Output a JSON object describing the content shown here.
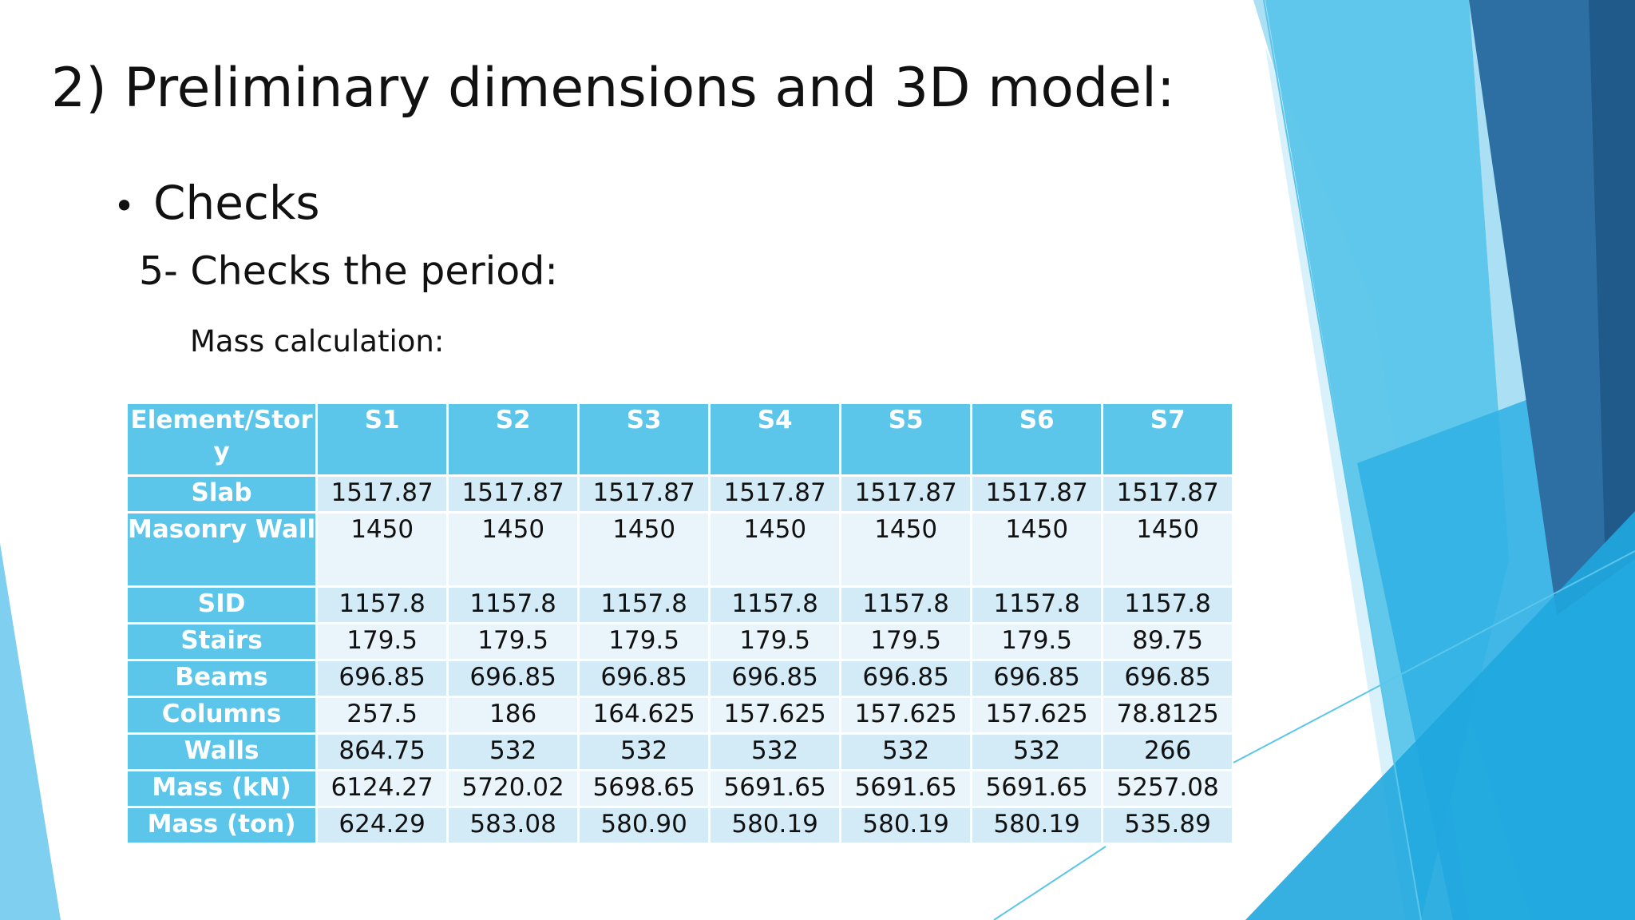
{
  "slide": {
    "title": "2) Preliminary dimensions and 3D model:",
    "bullet_symbol": "•",
    "bullet": "Checks",
    "subheading": "5- Checks the period:",
    "caption": "Mass calculation:"
  },
  "colors": {
    "table_header": "#5bc5ea",
    "row_even": "#d3eaf7",
    "row_odd": "#e9f4fb",
    "accent_dark": "#2e6fa3",
    "accent_light": "#9fdcf3"
  },
  "table": {
    "header_lines": [
      "Element/Stor",
      "y"
    ],
    "columns": [
      "S1",
      "S2",
      "S3",
      "S4",
      "S5",
      "S6",
      "S7"
    ],
    "rows": [
      {
        "label": "Slab",
        "values": [
          "1517.87",
          "1517.87",
          "1517.87",
          "1517.87",
          "1517.87",
          "1517.87",
          "1517.87"
        ]
      },
      {
        "label": "Masonry Wall",
        "values": [
          "1450",
          "1450",
          "1450",
          "1450",
          "1450",
          "1450",
          "1450"
        ]
      },
      {
        "label": "SID",
        "values": [
          "1157.8",
          "1157.8",
          "1157.8",
          "1157.8",
          "1157.8",
          "1157.8",
          "1157.8"
        ]
      },
      {
        "label": "Stairs",
        "values": [
          "179.5",
          "179.5",
          "179.5",
          "179.5",
          "179.5",
          "179.5",
          "89.75"
        ]
      },
      {
        "label": "Beams",
        "values": [
          "696.85",
          "696.85",
          "696.85",
          "696.85",
          "696.85",
          "696.85",
          "696.85"
        ]
      },
      {
        "label": "Columns",
        "values": [
          "257.5",
          "186",
          "164.625",
          "157.625",
          "157.625",
          "157.625",
          "78.8125"
        ]
      },
      {
        "label": "Walls",
        "values": [
          "864.75",
          "532",
          "532",
          "532",
          "532",
          "532",
          "266"
        ]
      },
      {
        "label": "Mass (kN)",
        "values": [
          "6124.27",
          "5720.02",
          "5698.65",
          "5691.65",
          "5691.65",
          "5691.65",
          "5257.08"
        ]
      },
      {
        "label": "Mass (ton)",
        "values": [
          "624.29",
          "583.08",
          "580.90",
          "580.19",
          "580.19",
          "580.19",
          "535.89"
        ]
      }
    ]
  }
}
